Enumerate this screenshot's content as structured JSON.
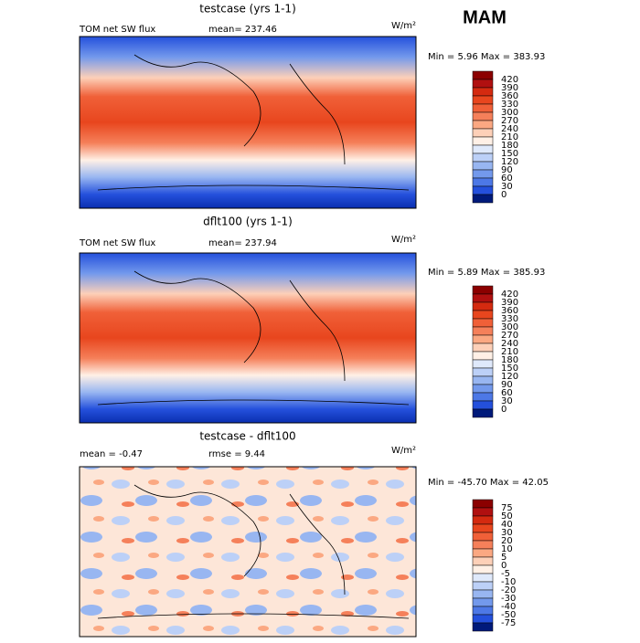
{
  "header": {
    "season": "MAM"
  },
  "panels": [
    {
      "title": "testcase (yrs 1-1)",
      "variable": "TOM net SW flux",
      "stat": "mean= 237.46",
      "units": "W/m²",
      "range": "Min =   5.96 Max = 383.93",
      "colorbar": {
        "labels": [
          420,
          390,
          360,
          330,
          300,
          270,
          240,
          210,
          180,
          150,
          120,
          90,
          60,
          30,
          0
        ],
        "colors": [
          "#8b0000",
          "#b01010",
          "#d42a10",
          "#e8461e",
          "#f06038",
          "#f5805a",
          "#fba882",
          "#fdd0b8",
          "#fff0e6",
          "#dfe9fb",
          "#bcd0f7",
          "#98b6f1",
          "#7399ec",
          "#4d78e6",
          "#2450dc",
          "#001a7a"
        ]
      }
    },
    {
      "title": "dflt100 (yrs 1-1)",
      "variable": "TOM net SW flux",
      "stat": "mean= 237.94",
      "units": "W/m²",
      "range": "Min =   5.89 Max = 385.93",
      "colorbar": {
        "labels": [
          420,
          390,
          360,
          330,
          300,
          270,
          240,
          210,
          180,
          150,
          120,
          90,
          60,
          30,
          0
        ],
        "colors": [
          "#8b0000",
          "#b01010",
          "#d42a10",
          "#e8461e",
          "#f06038",
          "#f5805a",
          "#fba882",
          "#fdd0b8",
          "#fff0e6",
          "#dfe9fb",
          "#bcd0f7",
          "#98b6f1",
          "#7399ec",
          "#4d78e6",
          "#2450dc",
          "#001a7a"
        ]
      }
    },
    {
      "title": "testcase - dflt100",
      "variable": "mean =   -0.47",
      "stat": "rmse =   9.44",
      "units": "W/m²",
      "range": "Min = -45.70 Max =  42.05",
      "colorbar": {
        "labels": [
          75,
          50,
          40,
          30,
          20,
          10,
          5,
          0,
          -5,
          -10,
          -20,
          -30,
          -40,
          -50,
          -75
        ],
        "colors": [
          "#8b0000",
          "#b01010",
          "#d42a10",
          "#e8461e",
          "#f06038",
          "#f5805a",
          "#fba882",
          "#fdd0b8",
          "#fff0e6",
          "#dfe9fb",
          "#bcd0f7",
          "#98b6f1",
          "#7399ec",
          "#4d78e6",
          "#2450dc",
          "#001a7a"
        ]
      }
    }
  ]
}
